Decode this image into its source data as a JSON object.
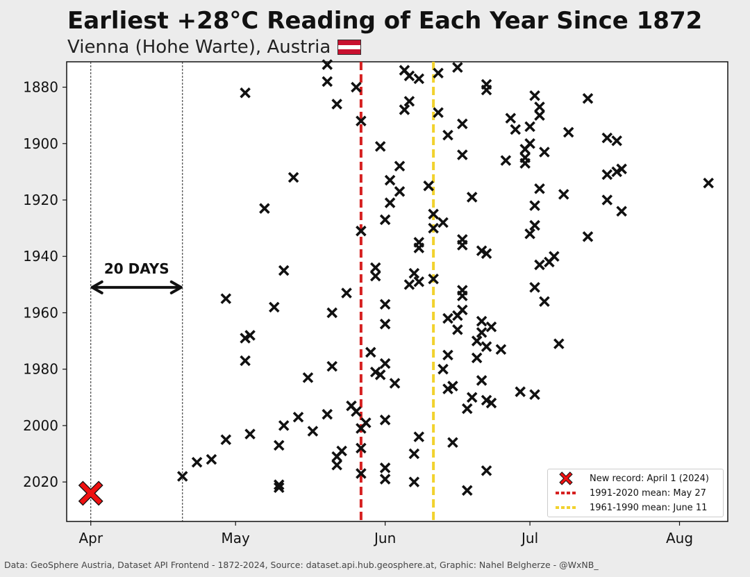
{
  "header": {
    "title": "Earliest +28°C Reading of Each Year Since 1872",
    "subtitle": "Vienna (Hohe Warte), Austria"
  },
  "flag_colors": [
    "#c8102e",
    "#ffffff",
    "#c8102e"
  ],
  "footer": "Data: GeoSphere Austria, Dataset API Frontend - 1872-2024, Source: dataset.api.hub.geosphere.at, Graphic: Nahel Belgherze - @WxNB_",
  "chart_data": {
    "type": "scatter",
    "x_axis": "date (April 1 – August)",
    "y_axis": "year",
    "ylim": [
      2034,
      1871
    ],
    "xlim": [
      "Mar 27",
      "Aug 11"
    ],
    "x_tick_labels": [
      "Apr",
      "May",
      "Jun",
      "Jul",
      "Aug"
    ],
    "y_tick_labels": [
      "1880",
      "1900",
      "1920",
      "1940",
      "1960",
      "1980",
      "2000",
      "2020"
    ],
    "y_tick_values": [
      1880,
      1900,
      1920,
      1940,
      1960,
      1980,
      2000,
      2020
    ],
    "grid": false,
    "marker_color": "#111111",
    "record_color": "#ee1111",
    "record": {
      "date": "Apr 1",
      "year": 2024,
      "label": "New record: April 1 (2024)"
    },
    "mean_lines": [
      {
        "date": "May 27",
        "label": "1991-2020 mean: May 27",
        "color": "#d62020"
      },
      {
        "date": "Jun 11",
        "label": "1961-1990 mean: June 11",
        "color": "#f2d22e"
      }
    ],
    "annotation": {
      "text": "20 DAYS",
      "from": "Apr 1",
      "to": "Apr 20",
      "year": 1951
    },
    "points": [
      {
        "date": "May 20",
        "year": 1872
      },
      {
        "date": "Jun 16",
        "year": 1873
      },
      {
        "date": "Jun 5",
        "year": 1874
      },
      {
        "date": "Jun 12",
        "year": 1875
      },
      {
        "date": "Jun 6",
        "year": 1876
      },
      {
        "date": "Jun 8",
        "year": 1877
      },
      {
        "date": "May 20",
        "year": 1878
      },
      {
        "date": "Jun 22",
        "year": 1879
      },
      {
        "date": "May 26",
        "year": 1880
      },
      {
        "date": "Jun 22",
        "year": 1881
      },
      {
        "date": "May 3",
        "year": 1882
      },
      {
        "date": "Jul 2",
        "year": 1883
      },
      {
        "date": "Jul 13",
        "year": 1884
      },
      {
        "date": "Jun 6",
        "year": 1885
      },
      {
        "date": "May 22",
        "year": 1886
      },
      {
        "date": "Jul 3",
        "year": 1887
      },
      {
        "date": "Jun 5",
        "year": 1888
      },
      {
        "date": "Jun 12",
        "year": 1889
      },
      {
        "date": "Jul 3",
        "year": 1890
      },
      {
        "date": "Jun 27",
        "year": 1891
      },
      {
        "date": "May 27",
        "year": 1892
      },
      {
        "date": "Jun 17",
        "year": 1893
      },
      {
        "date": "Jul 1",
        "year": 1894
      },
      {
        "date": "Jun 28",
        "year": 1895
      },
      {
        "date": "Jul 9",
        "year": 1896
      },
      {
        "date": "Jun 14",
        "year": 1897
      },
      {
        "date": "Jul 17",
        "year": 1898
      },
      {
        "date": "Jul 19",
        "year": 1899
      },
      {
        "date": "Jul 1",
        "year": 1900
      },
      {
        "date": "May 31",
        "year": 1901
      },
      {
        "date": "Jun 30",
        "year": 1902
      },
      {
        "date": "Jul 4",
        "year": 1903
      },
      {
        "date": "Jun 17",
        "year": 1904
      },
      {
        "date": "Jun 30",
        "year": 1905
      },
      {
        "date": "Jun 26",
        "year": 1906
      },
      {
        "date": "Jun 30",
        "year": 1907
      },
      {
        "date": "Jun 4",
        "year": 1908
      },
      {
        "date": "Jul 20",
        "year": 1909
      },
      {
        "date": "Jul 19",
        "year": 1910
      },
      {
        "date": "Jul 17",
        "year": 1911
      },
      {
        "date": "May 13",
        "year": 1912
      },
      {
        "date": "Jun 2",
        "year": 1913
      },
      {
        "date": "Aug 7",
        "year": 1914
      },
      {
        "date": "Jun 10",
        "year": 1915
      },
      {
        "date": "Jul 3",
        "year": 1916
      },
      {
        "date": "Jun 4",
        "year": 1917
      },
      {
        "date": "Jul 8",
        "year": 1918
      },
      {
        "date": "Jun 19",
        "year": 1919
      },
      {
        "date": "Jul 17",
        "year": 1920
      },
      {
        "date": "Jun 2",
        "year": 1921
      },
      {
        "date": "Jul 2",
        "year": 1922
      },
      {
        "date": "May 7",
        "year": 1923
      },
      {
        "date": "Jul 20",
        "year": 1924
      },
      {
        "date": "Jun 11",
        "year": 1925
      },
      {
        "date": "Jun 1",
        "year": 1927
      },
      {
        "date": "Jun 13",
        "year": 1928
      },
      {
        "date": "Jul 2",
        "year": 1929
      },
      {
        "date": "Jun 11",
        "year": 1930
      },
      {
        "date": "May 27",
        "year": 1931
      },
      {
        "date": "Jul 1",
        "year": 1932
      },
      {
        "date": "Jul 13",
        "year": 1933
      },
      {
        "date": "Jun 17",
        "year": 1934
      },
      {
        "date": "Jun 8",
        "year": 1935
      },
      {
        "date": "Jun 17",
        "year": 1936
      },
      {
        "date": "Jun 8",
        "year": 1937
      },
      {
        "date": "Jun 21",
        "year": 1938
      },
      {
        "date": "Jun 22",
        "year": 1939
      },
      {
        "date": "Jul 6",
        "year": 1940
      },
      {
        "date": "Jul 5",
        "year": 1942
      },
      {
        "date": "Jul 3",
        "year": 1943
      },
      {
        "date": "May 30",
        "year": 1944
      },
      {
        "date": "May 11",
        "year": 1945
      },
      {
        "date": "Jun 7",
        "year": 1946
      },
      {
        "date": "May 30",
        "year": 1947
      },
      {
        "date": "Jun 11",
        "year": 1948
      },
      {
        "date": "Jun 8",
        "year": 1949
      },
      {
        "date": "Jun 6",
        "year": 1950
      },
      {
        "date": "Jul 2",
        "year": 1951
      },
      {
        "date": "Jun 17",
        "year": 1952
      },
      {
        "date": "May 24",
        "year": 1953
      },
      {
        "date": "Jun 17",
        "year": 1954
      },
      {
        "date": "Apr 29",
        "year": 1955
      },
      {
        "date": "Jul 4",
        "year": 1956
      },
      {
        "date": "Jun 1",
        "year": 1957
      },
      {
        "date": "May 9",
        "year": 1958
      },
      {
        "date": "Jun 17",
        "year": 1959
      },
      {
        "date": "May 21",
        "year": 1960
      },
      {
        "date": "Jun 16",
        "year": 1961
      },
      {
        "date": "Jun 14",
        "year": 1962
      },
      {
        "date": "Jun 21",
        "year": 1963
      },
      {
        "date": "Jun 1",
        "year": 1964
      },
      {
        "date": "Jun 23",
        "year": 1965
      },
      {
        "date": "Jun 16",
        "year": 1966
      },
      {
        "date": "Jun 21",
        "year": 1967
      },
      {
        "date": "May 4",
        "year": 1968
      },
      {
        "date": "May 3",
        "year": 1969
      },
      {
        "date": "Jun 20",
        "year": 1970
      },
      {
        "date": "Jul 7",
        "year": 1971
      },
      {
        "date": "Jun 22",
        "year": 1972
      },
      {
        "date": "Jun 25",
        "year": 1973
      },
      {
        "date": "May 29",
        "year": 1974
      },
      {
        "date": "Jun 14",
        "year": 1975
      },
      {
        "date": "Jun 20",
        "year": 1976
      },
      {
        "date": "May 3",
        "year": 1977
      },
      {
        "date": "Jun 1",
        "year": 1978
      },
      {
        "date": "May 21",
        "year": 1979
      },
      {
        "date": "Jun 13",
        "year": 1980
      },
      {
        "date": "May 30",
        "year": 1981
      },
      {
        "date": "May 31",
        "year": 1982
      },
      {
        "date": "May 16",
        "year": 1983
      },
      {
        "date": "Jun 21",
        "year": 1984
      },
      {
        "date": "Jun 3",
        "year": 1985
      },
      {
        "date": "Jun 15",
        "year": 1986
      },
      {
        "date": "Jun 14",
        "year": 1987
      },
      {
        "date": "Jun 29",
        "year": 1988
      },
      {
        "date": "Jul 2",
        "year": 1989
      },
      {
        "date": "Jun 19",
        "year": 1990
      },
      {
        "date": "Jun 22",
        "year": 1991
      },
      {
        "date": "Jun 23",
        "year": 1992
      },
      {
        "date": "May 25",
        "year": 1993
      },
      {
        "date": "Jun 18",
        "year": 1994
      },
      {
        "date": "May 26",
        "year": 1995
      },
      {
        "date": "May 20",
        "year": 1996
      },
      {
        "date": "May 14",
        "year": 1997
      },
      {
        "date": "Jun 1",
        "year": 1998
      },
      {
        "date": "May 28",
        "year": 1999
      },
      {
        "date": "May 11",
        "year": 2000
      },
      {
        "date": "May 27",
        "year": 2001
      },
      {
        "date": "May 17",
        "year": 2002
      },
      {
        "date": "May 4",
        "year": 2003
      },
      {
        "date": "Jun 8",
        "year": 2004
      },
      {
        "date": "Apr 29",
        "year": 2005
      },
      {
        "date": "Jun 15",
        "year": 2006
      },
      {
        "date": "May 10",
        "year": 2007
      },
      {
        "date": "May 27",
        "year": 2008
      },
      {
        "date": "May 23",
        "year": 2009
      },
      {
        "date": "Jun 7",
        "year": 2010
      },
      {
        "date": "May 22",
        "year": 2011
      },
      {
        "date": "Apr 26",
        "year": 2012
      },
      {
        "date": "Apr 23",
        "year": 2013
      },
      {
        "date": "May 22",
        "year": 2014
      },
      {
        "date": "Jun 1",
        "year": 2015
      },
      {
        "date": "Jun 22",
        "year": 2016
      },
      {
        "date": "May 27",
        "year": 2017
      },
      {
        "date": "Apr 20",
        "year": 2018
      },
      {
        "date": "Jun 1",
        "year": 2019
      },
      {
        "date": "Jun 7",
        "year": 2020
      },
      {
        "date": "May 10",
        "year": 2021
      },
      {
        "date": "May 10",
        "year": 2022
      },
      {
        "date": "Jun 18",
        "year": 2023
      }
    ]
  }
}
